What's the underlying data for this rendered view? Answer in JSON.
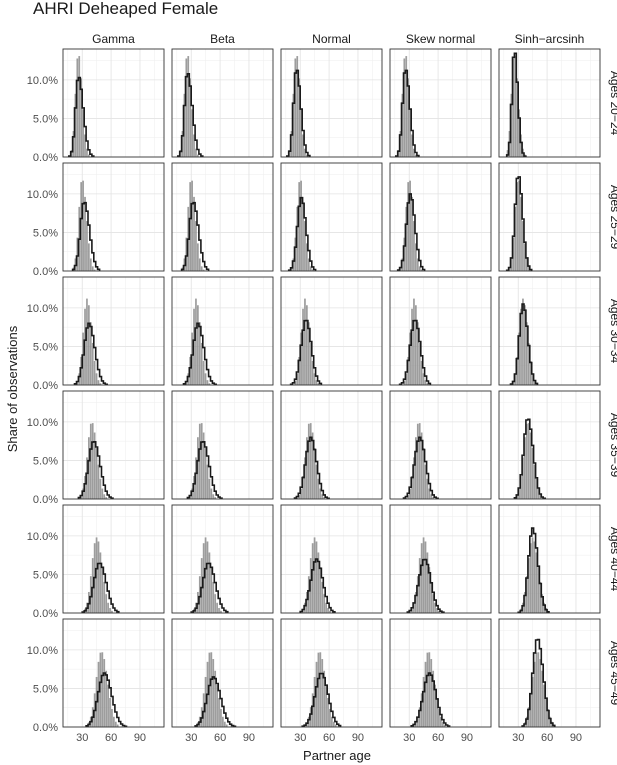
{
  "chart_data": {
    "type": "histogram-facet",
    "title": "AHRI Deheaped Female",
    "xlabel": "Partner age",
    "ylabel": "Share of observations",
    "columns": [
      "Gamma",
      "Beta",
      "Normal",
      "Skew normal",
      "Sinh−arcsinh"
    ],
    "rows": [
      "Ages 20−24",
      "Ages 25−29",
      "Ages 30−34",
      "Ages 35−39",
      "Ages 40−44",
      "Ages 45−49"
    ],
    "x_ticks": [
      30,
      60,
      90
    ],
    "x_tick_labels": [
      "30",
      "60",
      "90"
    ],
    "y_ticks": [
      0,
      0.05,
      0.1
    ],
    "y_tick_labels": [
      "0.0%",
      "5.0%",
      "10.0%"
    ],
    "xlim": [
      10,
      115
    ],
    "ylim": [
      0,
      0.14
    ],
    "grid": true,
    "series": [
      {
        "role": "observed",
        "style": "grey filled bars",
        "color": "#8c8c8c"
      },
      {
        "role": "fitted",
        "style": "black step outline",
        "color": "#1a1a1a"
      }
    ],
    "observed_distribution_by_row": [
      {
        "mode": 26,
        "peak": 0.135,
        "sd_left": 3.0,
        "sd_right": 4.0
      },
      {
        "mode": 30,
        "peak": 0.12,
        "sd_left": 3.5,
        "sd_right": 4.5
      },
      {
        "mode": 35,
        "peak": 0.112,
        "sd_left": 4.0,
        "sd_right": 5.0
      },
      {
        "mode": 40,
        "peak": 0.1,
        "sd_left": 4.5,
        "sd_right": 5.5
      },
      {
        "mode": 45,
        "peak": 0.098,
        "sd_left": 5.0,
        "sd_right": 6.0
      },
      {
        "mode": 50,
        "peak": 0.098,
        "sd_left": 5.5,
        "sd_right": 6.5
      }
    ],
    "fitted_distribution": [
      [
        {
          "mode": 26,
          "peak": 0.105,
          "sd_left": 3.0,
          "sd_right": 5.0
        },
        {
          "mode": 26,
          "peak": 0.11,
          "sd_left": 3.0,
          "sd_right": 5.0
        },
        {
          "mode": 26,
          "peak": 0.115,
          "sd_left": 3.0,
          "sd_right": 4.5
        },
        {
          "mode": 26,
          "peak": 0.115,
          "sd_left": 3.0,
          "sd_right": 4.5
        },
        {
          "mode": 26,
          "peak": 0.14,
          "sd_left": 2.5,
          "sd_right": 3.5
        }
      ],
      [
        {
          "mode": 32,
          "peak": 0.09,
          "sd_left": 4.0,
          "sd_right": 5.5
        },
        {
          "mode": 32,
          "peak": 0.09,
          "sd_left": 4.0,
          "sd_right": 5.5
        },
        {
          "mode": 31,
          "peak": 0.095,
          "sd_left": 4.0,
          "sd_right": 5.0
        },
        {
          "mode": 31,
          "peak": 0.1,
          "sd_left": 4.0,
          "sd_right": 5.0
        },
        {
          "mode": 30,
          "peak": 0.125,
          "sd_left": 3.5,
          "sd_right": 4.5
        }
      ],
      [
        {
          "mode": 37,
          "peak": 0.08,
          "sd_left": 5.0,
          "sd_right": 6.0
        },
        {
          "mode": 37,
          "peak": 0.08,
          "sd_left": 5.0,
          "sd_right": 6.0
        },
        {
          "mode": 36,
          "peak": 0.085,
          "sd_left": 5.0,
          "sd_right": 5.5
        },
        {
          "mode": 36,
          "peak": 0.085,
          "sd_left": 5.0,
          "sd_right": 5.5
        },
        {
          "mode": 35,
          "peak": 0.105,
          "sd_left": 4.0,
          "sd_right": 5.0
        }
      ],
      [
        {
          "mode": 42,
          "peak": 0.075,
          "sd_left": 5.5,
          "sd_right": 6.5
        },
        {
          "mode": 42,
          "peak": 0.075,
          "sd_left": 5.5,
          "sd_right": 6.5
        },
        {
          "mode": 41,
          "peak": 0.08,
          "sd_left": 5.5,
          "sd_right": 6.0
        },
        {
          "mode": 41,
          "peak": 0.08,
          "sd_left": 5.5,
          "sd_right": 6.0
        },
        {
          "mode": 40,
          "peak": 0.105,
          "sd_left": 4.5,
          "sd_right": 5.5
        }
      ],
      [
        {
          "mode": 48,
          "peak": 0.065,
          "sd_left": 6.0,
          "sd_right": 7.0
        },
        {
          "mode": 48,
          "peak": 0.065,
          "sd_left": 6.0,
          "sd_right": 7.0
        },
        {
          "mode": 47,
          "peak": 0.07,
          "sd_left": 6.0,
          "sd_right": 6.5
        },
        {
          "mode": 46,
          "peak": 0.07,
          "sd_left": 6.0,
          "sd_right": 6.5
        },
        {
          "mode": 45,
          "peak": 0.11,
          "sd_left": 4.5,
          "sd_right": 5.5
        }
      ],
      [
        {
          "mode": 53,
          "peak": 0.07,
          "sd_left": 6.5,
          "sd_right": 7.5
        },
        {
          "mode": 53,
          "peak": 0.065,
          "sd_left": 6.5,
          "sd_right": 7.5
        },
        {
          "mode": 52,
          "peak": 0.07,
          "sd_left": 6.5,
          "sd_right": 7.0
        },
        {
          "mode": 51,
          "peak": 0.07,
          "sd_left": 6.5,
          "sd_right": 7.0
        },
        {
          "mode": 50,
          "peak": 0.115,
          "sd_left": 5.0,
          "sd_right": 6.0
        }
      ]
    ]
  }
}
